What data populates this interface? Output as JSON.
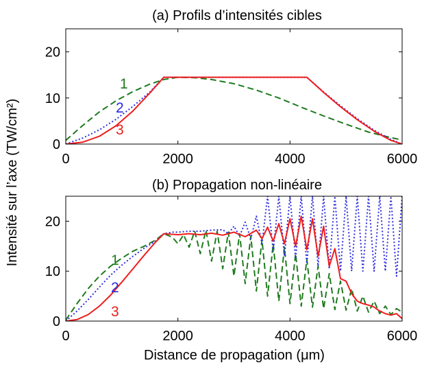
{
  "ylabel_shared": "Intensité sur l’axe (TW/cm²)",
  "xlabel_shared": "Distance de propagation (μm)",
  "colors": {
    "1": "#1e7a1e",
    "2": "#2b2be0",
    "3": "#ee1c1c"
  },
  "chart_data": [
    {
      "type": "line",
      "title": "(a) Profils d’intensités cibles",
      "xlabel": "",
      "ylabel": "",
      "xlim": [
        0,
        6000
      ],
      "ylim": [
        0,
        25
      ],
      "xticks": [
        0,
        2000,
        4000,
        6000
      ],
      "yticks": [
        0,
        10,
        20
      ],
      "grid": false,
      "series": [
        {
          "name": "1",
          "style": "dashed",
          "x": [
            0,
            300,
            600,
            900,
            1200,
            1500,
            1750,
            2000,
            2300,
            2600,
            3000,
            3400,
            3800,
            4200,
            4600,
            5000,
            5400,
            5800,
            6000
          ],
          "y": [
            0.8,
            4.0,
            7.0,
            9.4,
            11.4,
            13.0,
            14.0,
            14.5,
            14.4,
            14.0,
            13.1,
            11.7,
            10.0,
            8.0,
            6.1,
            4.3,
            2.6,
            1.4,
            0.9
          ]
        },
        {
          "name": "2",
          "style": "dotted",
          "x": [
            0,
            300,
            600,
            900,
            1200,
            1500,
            1750,
            2000,
            3000,
            4300,
            4600,
            4900,
            5200,
            5500,
            5800,
            6000
          ],
          "y": [
            0,
            1.3,
            3.1,
            5.4,
            8.2,
            11.3,
            14.5,
            14.5,
            14.5,
            14.5,
            11.3,
            8.3,
            5.5,
            3.0,
            1.0,
            0
          ]
        },
        {
          "name": "3",
          "style": "solid",
          "x": [
            0,
            300,
            600,
            900,
            1200,
            1500,
            1750,
            2000,
            3000,
            4300,
            4600,
            4900,
            5200,
            5500,
            5800,
            6000
          ],
          "y": [
            0,
            0.4,
            1.7,
            4.0,
            7.2,
            11.1,
            14.5,
            14.5,
            14.5,
            14.5,
            11.2,
            8.1,
            5.3,
            2.8,
            0.8,
            0
          ]
        }
      ]
    },
    {
      "type": "line",
      "title": "(b) Propagation non-linéaire",
      "xlabel": "",
      "ylabel": "",
      "xlim": [
        0,
        6000
      ],
      "ylim": [
        0,
        25
      ],
      "xticks": [
        0,
        2000,
        4000,
        6000
      ],
      "yticks": [
        0,
        10,
        20
      ],
      "grid": false,
      "series": [
        {
          "name": "1",
          "style": "dashed",
          "x": [
            0,
            200,
            400,
            600,
            800,
            1000,
            1200,
            1400,
            1600,
            1750,
            1900,
            2000,
            2100,
            2200,
            2300,
            2400,
            2500,
            2600,
            2700,
            2800,
            2900,
            3000,
            3100,
            3200,
            3300,
            3400,
            3500,
            3600,
            3700,
            3800,
            3900,
            4000,
            4100,
            4200,
            4300,
            4400,
            4500,
            4600,
            4700,
            4800,
            4900,
            5000,
            5100,
            5200,
            5300,
            5400,
            5500,
            5600,
            5700,
            5800,
            5900,
            6000
          ],
          "y": [
            0.2,
            3.5,
            6.5,
            9.0,
            11.0,
            12.6,
            14.0,
            15.0,
            16.2,
            17.5,
            16.8,
            15.5,
            17.3,
            14.8,
            18.0,
            13.5,
            18.2,
            12.0,
            18.0,
            10.5,
            17.8,
            9.0,
            17.5,
            7.5,
            17.0,
            6.0,
            16.3,
            5.0,
            15.5,
            4.0,
            14.8,
            3.5,
            13.5,
            3.0,
            12.3,
            2.8,
            11.0,
            2.5,
            9.5,
            2.3,
            8.0,
            2.2,
            6.5,
            2.0,
            5.0,
            1.8,
            4.0,
            1.5,
            3.0,
            1.3,
            2.5,
            1.8
          ]
        },
        {
          "name": "2",
          "style": "dotted",
          "x": [
            0,
            200,
            400,
            600,
            800,
            1000,
            1200,
            1400,
            1600,
            1750,
            1900,
            2000,
            2200,
            2400,
            2600,
            2800,
            2900,
            3000,
            3100,
            3200,
            3300,
            3400,
            3500,
            3600,
            3700,
            3800,
            3900,
            4000,
            4100,
            4200,
            4300,
            4400,
            4500,
            4600,
            4700,
            4800,
            4900,
            5000,
            5100,
            5200,
            5300,
            5400,
            5500,
            5600,
            5700,
            5800,
            5900,
            6000
          ],
          "y": [
            0,
            2.0,
            4.3,
            6.8,
            9.2,
            11.2,
            13.0,
            14.6,
            16.0,
            17.5,
            17.8,
            17.8,
            18.0,
            18.0,
            18.2,
            18.3,
            17.5,
            19.0,
            17.0,
            19.8,
            16.5,
            21.0,
            15.5,
            25.0,
            14.0,
            25.0,
            13.0,
            25.0,
            12.5,
            25.0,
            11.5,
            25.0,
            11.0,
            25.0,
            10.5,
            25.0,
            10.0,
            25.0,
            10.0,
            25.0,
            10.0,
            25.0,
            10.0,
            25.0,
            10.0,
            25.0,
            9.0,
            25.0
          ]
        },
        {
          "name": "3",
          "style": "solid",
          "x": [
            0,
            200,
            400,
            600,
            800,
            1000,
            1200,
            1400,
            1600,
            1750,
            2000,
            2200,
            2400,
            2600,
            2800,
            3000,
            3200,
            3400,
            3500,
            3600,
            3700,
            3800,
            3900,
            4000,
            4100,
            4200,
            4300,
            4400,
            4500,
            4600,
            4700,
            4800,
            4900,
            5000,
            5100,
            5200,
            5300,
            5400,
            5500,
            5600,
            5700,
            5800,
            5900,
            6000
          ],
          "y": [
            0,
            0.3,
            1.3,
            3.0,
            5.2,
            7.8,
            10.5,
            13.2,
            15.8,
            17.5,
            17.3,
            17.5,
            17.3,
            17.6,
            17.2,
            17.8,
            16.9,
            18.2,
            16.5,
            18.8,
            16.0,
            19.5,
            15.5,
            20.5,
            15.0,
            21.0,
            14.3,
            20.5,
            13.0,
            19.0,
            11.0,
            14.5,
            8.5,
            8.0,
            5.5,
            4.0,
            3.5,
            3.2,
            2.8,
            2.0,
            1.5,
            1.2,
            1.5,
            0.5
          ]
        }
      ]
    }
  ]
}
